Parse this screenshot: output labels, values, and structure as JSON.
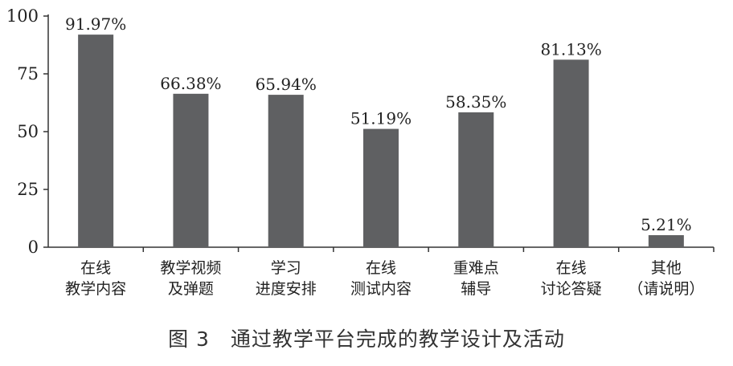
{
  "caption": "图 3　通过教学平台完成的教学设计及活动",
  "chart_data": {
    "type": "bar",
    "categories": [
      [
        "在线",
        "教学内容"
      ],
      [
        "教学视频",
        "及弹题"
      ],
      [
        "学习",
        "进度安排"
      ],
      [
        "在线",
        "测试内容"
      ],
      [
        "重难点",
        "辅导"
      ],
      [
        "在线",
        "讨论答疑"
      ],
      [
        "其他",
        "（请说明）"
      ]
    ],
    "values": [
      91.97,
      66.38,
      65.94,
      51.19,
      58.35,
      81.13,
      5.21
    ],
    "value_labels": [
      "91.97%",
      "66.38%",
      "65.94%",
      "51.19%",
      "58.35%",
      "81.13%",
      "5.21%"
    ],
    "yticks": [
      0,
      25,
      50,
      75,
      100
    ],
    "ylim": [
      0,
      100
    ],
    "title": "",
    "xlabel": "",
    "ylabel": "",
    "bar_color": "#5f6062",
    "grid": false
  }
}
